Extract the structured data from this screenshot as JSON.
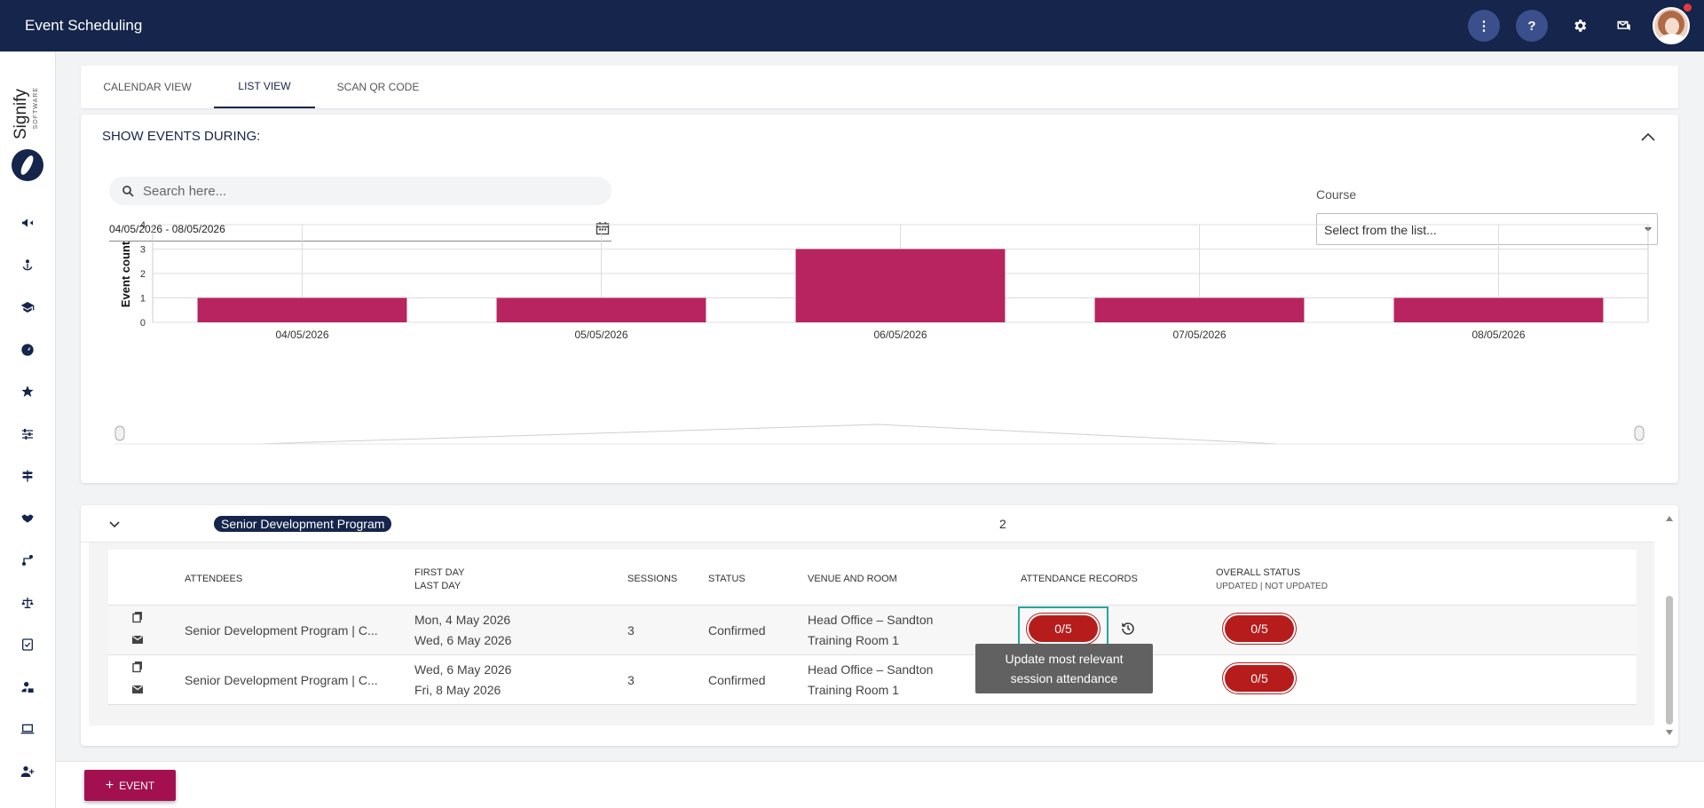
{
  "app": {
    "title": "Event Scheduling"
  },
  "topbar": {
    "more_label": "⋮",
    "help_label": "?"
  },
  "logo": {
    "word": "Signify",
    "subword": "SOFTWARE"
  },
  "tabs": [
    {
      "label": "CALENDAR VIEW"
    },
    {
      "label": "LIST VIEW"
    },
    {
      "label": "SCAN QR CODE"
    }
  ],
  "filters": {
    "title": "SHOW EVENTS DURING:",
    "search_placeholder": "Search here...",
    "date_range": "04/05/2026 - 08/05/2026",
    "course_label": "Course",
    "course_placeholder": "Select from the list..."
  },
  "chart_data": {
    "type": "bar",
    "categories": [
      "04/05/2026",
      "05/05/2026",
      "06/05/2026",
      "07/05/2026",
      "08/05/2026"
    ],
    "values": [
      1,
      1,
      3,
      1,
      1
    ],
    "ylabel": "Event count",
    "ylim": [
      0,
      4
    ],
    "yticks": [
      0,
      1,
      2,
      3,
      4
    ],
    "grid": true,
    "bar_color": "#b8245f"
  },
  "group": {
    "name": "Senior Development Program",
    "count": "2"
  },
  "table": {
    "headers": {
      "attendees": "ATTENDEES",
      "first_day": "FIRST DAY",
      "last_day": "LAST DAY",
      "sessions": "SESSIONS",
      "status": "STATUS",
      "venue": "VENUE AND ROOM",
      "attendance": "ATTENDANCE RECORDS",
      "overall": "OVERALL STATUS",
      "overall_sub": "UPDATED | NOT UPDATED"
    },
    "rows": [
      {
        "attendees": "Senior Development Program | C...",
        "first_day": "Mon, 4 May 2026",
        "last_day": "Wed, 6 May 2026",
        "sessions": "3",
        "status": "Confirmed",
        "venue": "Head Office – Sandton",
        "room": "Training Room 1",
        "attendance": "0/5",
        "overall": "0/5"
      },
      {
        "attendees": "Senior Development Program | C...",
        "first_day": "Wed, 6 May 2026",
        "last_day": "Fri, 8 May 2026",
        "sessions": "3",
        "status": "Confirmed",
        "venue": "Head Office – Sandton",
        "room": "Training Room 1",
        "overall": "0/5"
      }
    ]
  },
  "tooltip": {
    "line1": "Update most relevant",
    "line2": "session attendance"
  },
  "actions": {
    "add_event_label": "EVENT",
    "add_event_icon": "+"
  },
  "colors": {
    "navy": "#15254b",
    "accent": "#a3104f",
    "status_red": "#b71c1c",
    "focus": "#26a69a"
  }
}
